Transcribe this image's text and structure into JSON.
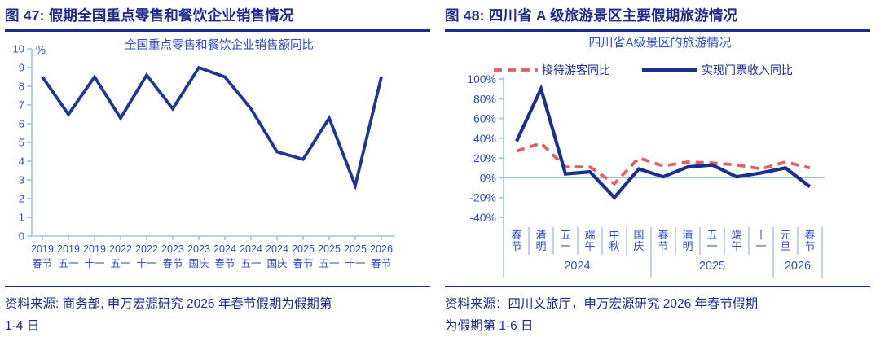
{
  "colors": {
    "navy_text": "#1B2C8C",
    "label_blue": "#2E4EC4",
    "axis_blue": "#9DC3E6",
    "line_blue": "#1C3796",
    "series_blue": "#1B2F8F",
    "series_red": "#E06060"
  },
  "figures": [
    {
      "header": "图 47: 假期全国重点零售和餐饮企业销售情况",
      "source_lines": [
        "资料来源: 商务部, 申万宏源研究 2026 年春节假期为假期第",
        "1-4 日"
      ]
    },
    {
      "header": "图 48: 四川省 A 级旅游景区主要假期旅游情况",
      "source_lines": [
        "资料来源：四川文旅厅，申万宏源研究 2026 年春节假期",
        "为假期第 1-6 日"
      ]
    }
  ],
  "chart_data": [
    {
      "type": "line",
      "title": "全国重点零售和餐饮企业销售额同比",
      "y_unit": "%",
      "ylim": [
        0,
        10
      ],
      "ytick_step": 1,
      "grid": false,
      "legend_position": "none",
      "x_years": [
        "2019",
        "2019",
        "2019",
        "2022",
        "2022",
        "2023",
        "2023",
        "2024",
        "2024",
        "2024",
        "2025",
        "2025",
        "2025",
        "2026"
      ],
      "x_holidays": [
        "春节",
        "五一",
        "十一",
        "五一",
        "十一",
        "春节",
        "国庆",
        "春节",
        "五一",
        "国庆",
        "春节",
        "五一",
        "十一",
        "春节"
      ],
      "series": [
        {
          "name": "全国重点零售和餐饮企业销售额同比",
          "style": "solid",
          "color_key": "line_blue",
          "values": [
            8.5,
            6.5,
            8.5,
            6.3,
            8.6,
            6.8,
            9.0,
            8.5,
            6.8,
            4.5,
            4.1,
            6.3,
            2.7,
            8.5
          ]
        }
      ]
    },
    {
      "type": "line",
      "title": "四川省A级景区的旅游情况",
      "y_unit": "%",
      "ylim": [
        -40,
        100
      ],
      "ytick_step": 20,
      "grid": false,
      "legend_position": "top",
      "categories": [
        "春节",
        "清明",
        "五一",
        "端午",
        "中秋",
        "国庆",
        "春节",
        "清明",
        "五一",
        "端午",
        "十一",
        "元旦",
        "春节"
      ],
      "year_groups": [
        {
          "label": "2024",
          "span": 6
        },
        {
          "label": "2025",
          "span": 5
        },
        {
          "label": "2026",
          "span": 2
        }
      ],
      "series": [
        {
          "name": "接待游客同比",
          "style": "dashed",
          "color_key": "series_red",
          "values": [
            27,
            35,
            11,
            11,
            -6,
            20,
            12,
            16,
            15,
            13,
            9,
            16,
            10
          ]
        },
        {
          "name": "实现门票收入同比",
          "style": "solid",
          "color_key": "series_blue",
          "values": [
            37,
            90,
            4,
            6,
            -20,
            9,
            1,
            11,
            13,
            1,
            5,
            10,
            -9
          ]
        }
      ]
    }
  ]
}
